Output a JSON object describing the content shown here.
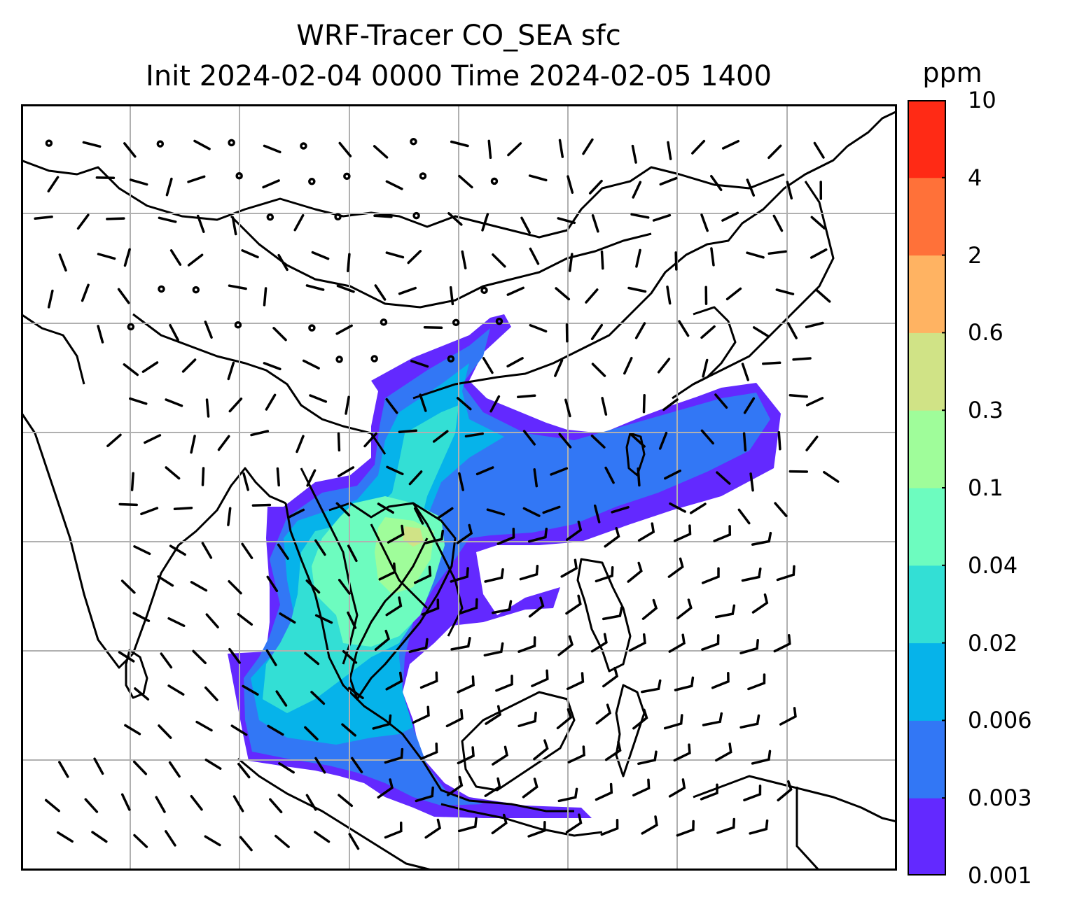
{
  "title": {
    "line1": "WRF-Tracer CO_SEA sfc",
    "line2": "Init 2024-02-04 0000 Time 2024-02-05 1400"
  },
  "colorbar": {
    "unit": "ppm",
    "levels": [
      "0.001",
      "0.003",
      "0.006",
      "0.02",
      "0.04",
      "0.1",
      "0.3",
      "0.6",
      "2",
      "4",
      "10"
    ],
    "colors": [
      "#6329ff",
      "#3277f5",
      "#06b3ea",
      "#33dfd5",
      "#6dfcbf",
      "#9ffd9a",
      "#d0e386",
      "#ffb362",
      "#ff7139",
      "#ff2a15"
    ]
  },
  "map": {
    "field": "CO_SEA",
    "level": "sfc",
    "gridlines": true,
    "colors": {
      "coast": "#000000",
      "grid": "#b0b0b0",
      "barb": "#000000"
    },
    "features": [
      "coastlines",
      "country-borders",
      "wind-barbs",
      "calm-circles",
      "tracer-plume"
    ]
  }
}
